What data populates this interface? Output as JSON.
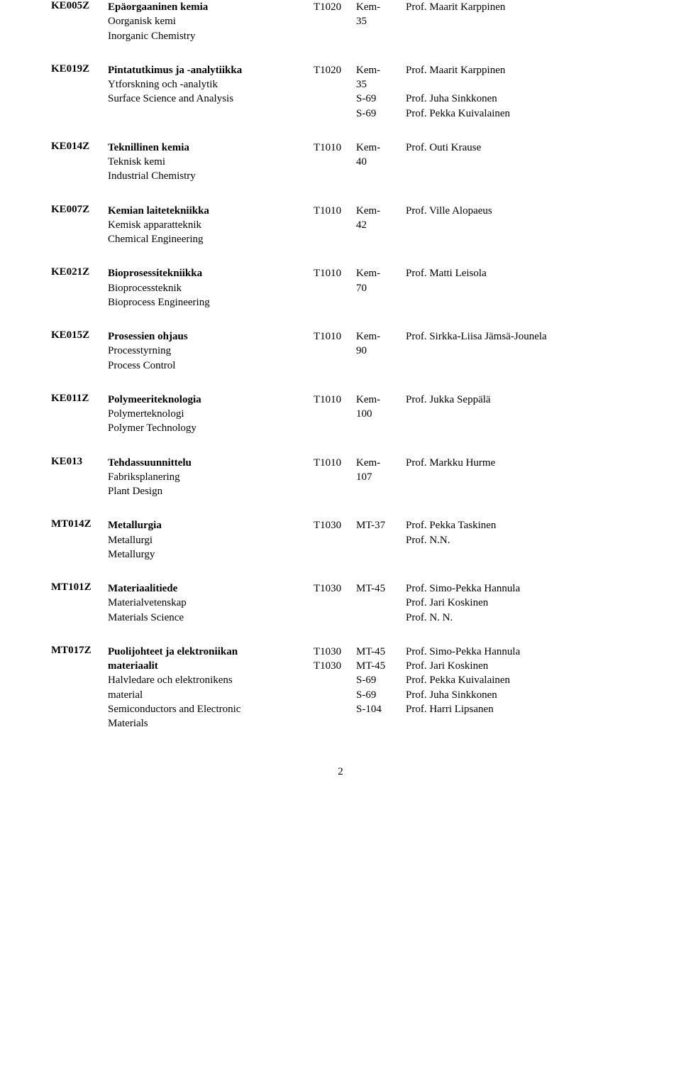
{
  "rows": [
    {
      "code": "KE005Z",
      "names": [
        "Epäorgaaninen kemia",
        "Oorganisk kemi",
        "Inorganic Chemistry"
      ],
      "tcodes": [
        "T1020"
      ],
      "locs": [
        "Kem-",
        "35"
      ],
      "profs": [
        "Prof. Maarit Karppinen"
      ]
    },
    {
      "code": "KE019Z",
      "names": [
        "Pintatutkimus ja -analytiikka",
        "Ytforskning och -analytik",
        "Surface Science and Analysis"
      ],
      "tcodes": [
        "T1020"
      ],
      "locs": [
        "Kem-",
        "35",
        "S-69",
        "S-69"
      ],
      "profs": [
        "Prof. Maarit Karppinen",
        "",
        "Prof. Juha Sinkkonen",
        "Prof. Pekka Kuivalainen"
      ]
    },
    {
      "code": "KE014Z",
      "names": [
        "Teknillinen kemia",
        "Teknisk kemi",
        "Industrial Chemistry"
      ],
      "tcodes": [
        "T1010"
      ],
      "locs": [
        "Kem-",
        "40"
      ],
      "profs": [
        "Prof. Outi Krause"
      ]
    },
    {
      "code": "KE007Z",
      "names": [
        "Kemian laitetekniikka",
        "Kemisk apparatteknik",
        "Chemical Engineering"
      ],
      "tcodes": [
        "T1010"
      ],
      "locs": [
        "Kem-",
        "42"
      ],
      "profs": [
        "Prof. Ville Alopaeus"
      ]
    },
    {
      "code": "KE021Z",
      "names": [
        "Bioprosessitekniikka",
        "Bioprocessteknik",
        "Bioprocess Engineering"
      ],
      "tcodes": [
        "T1010"
      ],
      "locs": [
        "Kem-",
        "70"
      ],
      "profs": [
        "Prof. Matti Leisola"
      ]
    },
    {
      "code": "KE015Z",
      "names": [
        "Prosessien ohjaus",
        "Processtyrning",
        "Process Control"
      ],
      "tcodes": [
        "T1010"
      ],
      "locs": [
        "Kem-",
        "90"
      ],
      "profs": [
        "Prof. Sirkka-Liisa Jämsä-Jounela"
      ]
    },
    {
      "code": "KE011Z",
      "names": [
        "Polymeeriteknologia",
        "Polymerteknologi",
        "Polymer Technology"
      ],
      "tcodes": [
        "T1010"
      ],
      "locs": [
        "Kem-",
        "100"
      ],
      "profs": [
        "Prof. Jukka Seppälä"
      ]
    },
    {
      "code": "KE013",
      "names": [
        "Tehdassuunnittelu",
        "Fabriksplanering",
        "Plant Design"
      ],
      "tcodes": [
        "T1010"
      ],
      "locs": [
        "Kem-",
        "107"
      ],
      "profs": [
        "Prof. Markku Hurme"
      ]
    },
    {
      "code": "MT014Z",
      "names": [
        "Metallurgia",
        "Metallurgi",
        "Metallurgy"
      ],
      "tcodes": [
        "T1030"
      ],
      "locs": [
        "MT-37"
      ],
      "profs": [
        "Prof. Pekka Taskinen",
        "Prof. N.N."
      ]
    },
    {
      "code": "MT101Z",
      "names": [
        "Materiaalitiede",
        "Materialvetenskap",
        "Materials Science"
      ],
      "tcodes": [
        "T1030"
      ],
      "locs": [
        "MT-45"
      ],
      "profs": [
        "Prof. Simo-Pekka Hannula",
        "Prof. Jari Koskinen",
        "Prof. N. N."
      ]
    },
    {
      "code": "MT017Z",
      "names": [
        "Puolijohteet ja elektroniikan",
        "materiaalit",
        "Halvledare och elektronikens",
        "material",
        "Semiconductors and Electronic",
        "Materials"
      ],
      "bold_lines": [
        0,
        1
      ],
      "tcodes": [
        "T1030",
        "T1030"
      ],
      "locs": [
        "MT-45",
        "MT-45",
        "S-69",
        "S-69",
        "S-104"
      ],
      "profs": [
        "Prof. Simo-Pekka Hannula",
        "Prof. Jari Koskinen",
        "Prof. Pekka Kuivalainen",
        "Prof. Juha Sinkkonen",
        "Prof. Harri Lipsanen"
      ]
    }
  ],
  "page_number": "2"
}
